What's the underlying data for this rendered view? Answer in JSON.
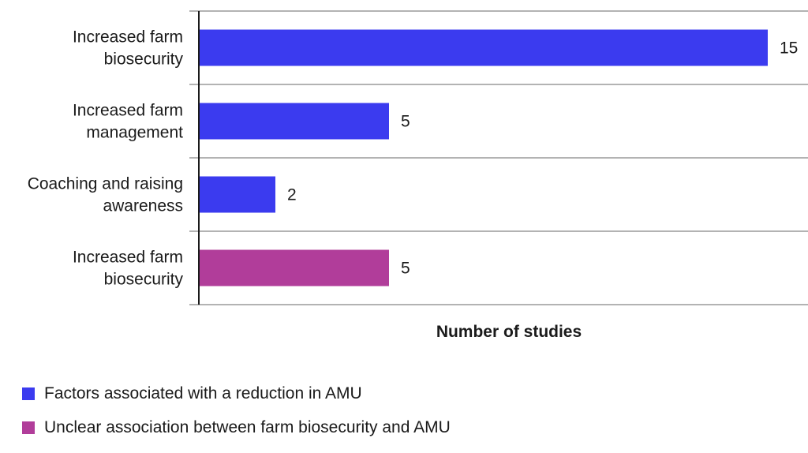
{
  "chart_data": {
    "type": "bar",
    "orientation": "horizontal",
    "categories": [
      [
        "Increased farm",
        "biosecurity"
      ],
      [
        "Increased farm",
        "management"
      ],
      [
        "Coaching and raising",
        "awareness"
      ],
      [
        "Increased farm",
        "biosecurity"
      ]
    ],
    "values": [
      15,
      5,
      2,
      5
    ],
    "series_index": [
      0,
      0,
      0,
      1
    ],
    "series": [
      {
        "name": "Factors associated with a reduction in AMU",
        "color": "#3b3bef"
      },
      {
        "name": "Unclear association between farm biosecurity and AMU",
        "color": "#b13d9a"
      }
    ],
    "xlabel": "Number of studies",
    "ylabel": "",
    "xlim": [
      0,
      15
    ],
    "grid": "horizontal separators between categories",
    "legend_position": "bottom-left",
    "data_labels": true
  }
}
